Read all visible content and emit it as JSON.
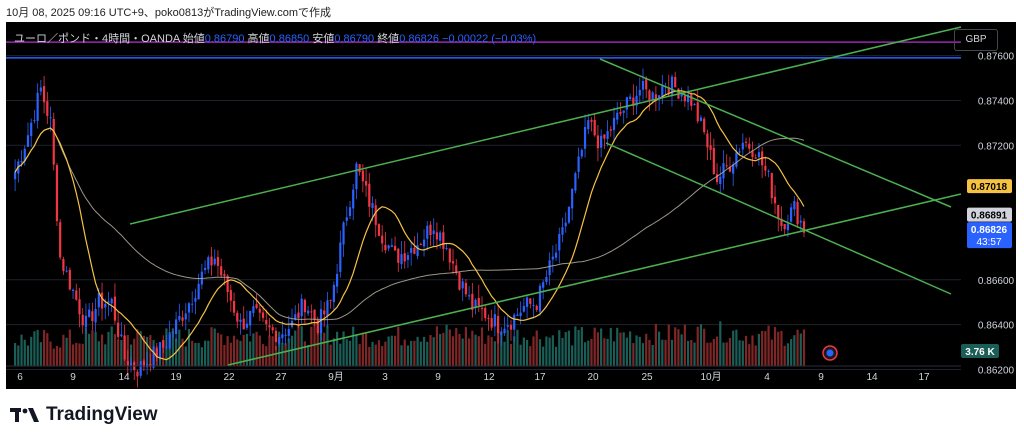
{
  "caption": "10月 08, 2025 09:16 UTC+9、poko0813がTradingView.comで作成",
  "header": {
    "symbol": "ユーロ／ポンド・4時間・OANDA",
    "open_label": "始値",
    "open": "0.86790",
    "high_label": "高値",
    "high": "0.86850",
    "low_label": "安値",
    "low": "0.86790",
    "close_label": "終値",
    "close": "0.86826",
    "change": "−0.00022 (−0.03%)"
  },
  "currency": "GBP",
  "brand": "TradingView",
  "colors": {
    "up": "#2962ff",
    "down": "#f23645",
    "ma_fast": "#f5c242",
    "ma_slow": "#b8b0a0",
    "channel": "#4caf50",
    "level_blue": "#2962ff",
    "level_purple": "#9c27b0",
    "volume_up": "#1b5e57",
    "volume_down": "#7f2626"
  },
  "chart_data": {
    "type": "candlestick",
    "ylim": [
      0.8622,
      0.8775
    ],
    "y_ticks": [
      "0.87600",
      "0.87400",
      "0.87200",
      "0.86600",
      "0.86400",
      "0.86200"
    ],
    "x_ticks": [
      "6",
      "9",
      "14",
      "19",
      "22",
      "27",
      "9月",
      "3",
      "9",
      "12",
      "17",
      "20",
      "25",
      "10月",
      "4",
      "9",
      "14",
      "17"
    ],
    "price_tags": [
      {
        "label": "0.87018",
        "value": 0.87018,
        "style": "yellow"
      },
      {
        "label": "0.86891",
        "value": 0.86891,
        "style": "gray"
      },
      {
        "label": "0.86826",
        "value": 0.86826,
        "style": "blue",
        "sub": "43:57"
      }
    ],
    "volume_tag": "3.76 K",
    "horizontal_levels": [
      {
        "value": 0.8766,
        "color": "purple"
      },
      {
        "value": 0.8759,
        "color": "blue"
      }
    ],
    "close_path": [
      [
        0,
        0.8708
      ],
      [
        4,
        0.8725
      ],
      [
        8,
        0.8745
      ],
      [
        11,
        0.873
      ],
      [
        14,
        0.867
      ],
      [
        18,
        0.8655
      ],
      [
        22,
        0.864
      ],
      [
        26,
        0.865
      ],
      [
        30,
        0.865
      ],
      [
        34,
        0.8625
      ],
      [
        38,
        0.862
      ],
      [
        42,
        0.8625
      ],
      [
        46,
        0.863
      ],
      [
        50,
        0.864
      ],
      [
        54,
        0.865
      ],
      [
        58,
        0.8662
      ],
      [
        62,
        0.867
      ],
      [
        66,
        0.8655
      ],
      [
        70,
        0.864
      ],
      [
        74,
        0.8645
      ],
      [
        78,
        0.8638
      ],
      [
        82,
        0.8636
      ],
      [
        86,
        0.864
      ],
      [
        90,
        0.865
      ],
      [
        94,
        0.864
      ],
      [
        98,
        0.865
      ],
      [
        103,
        0.869
      ],
      [
        106,
        0.871
      ],
      [
        110,
        0.8695
      ],
      [
        114,
        0.868
      ],
      [
        118,
        0.867
      ],
      [
        122,
        0.8673
      ],
      [
        126,
        0.8678
      ],
      [
        130,
        0.8685
      ],
      [
        134,
        0.8675
      ],
      [
        138,
        0.866
      ],
      [
        142,
        0.8648
      ],
      [
        146,
        0.8645
      ],
      [
        150,
        0.864
      ],
      [
        154,
        0.8642
      ],
      [
        158,
        0.8648
      ],
      [
        162,
        0.865
      ],
      [
        166,
        0.8665
      ],
      [
        170,
        0.868
      ],
      [
        174,
        0.8705
      ],
      [
        178,
        0.873
      ],
      [
        182,
        0.872
      ],
      [
        186,
        0.873
      ],
      [
        190,
        0.8738
      ],
      [
        194,
        0.8745
      ],
      [
        198,
        0.8742
      ],
      [
        202,
        0.8748
      ],
      [
        206,
        0.8745
      ],
      [
        210,
        0.874
      ],
      [
        214,
        0.8725
      ],
      [
        218,
        0.8705
      ],
      [
        222,
        0.8712
      ],
      [
        226,
        0.8722
      ],
      [
        230,
        0.8718
      ],
      [
        234,
        0.8705
      ],
      [
        238,
        0.8685
      ],
      [
        242,
        0.8692
      ],
      [
        245,
        0.8683
      ]
    ],
    "volume_level": [
      0.35,
      0.5,
      0.45,
      0.55,
      0.6,
      0.5,
      0.65,
      0.55,
      0.5,
      0.6,
      0.7,
      0.55
    ]
  }
}
